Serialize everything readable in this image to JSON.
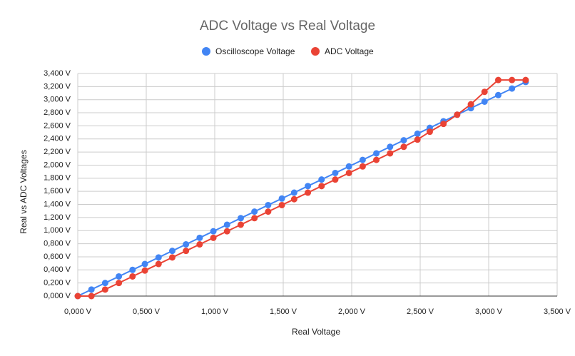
{
  "chart_data": {
    "type": "line",
    "title": "ADC Voltage vs Real Voltage",
    "x_label": "Real Voltage",
    "y_label": "Real vs ADC Voltages",
    "x": [
      0,
      0.1,
      0.2,
      0.3,
      0.4,
      0.49,
      0.59,
      0.69,
      0.79,
      0.89,
      0.99,
      1.09,
      1.19,
      1.29,
      1.39,
      1.49,
      1.58,
      1.68,
      1.78,
      1.88,
      1.98,
      2.08,
      2.18,
      2.28,
      2.38,
      2.48,
      2.57,
      2.67,
      2.77,
      2.87,
      2.97,
      3.07,
      3.17,
      3.27
    ],
    "series": [
      {
        "name": "Oscilloscope Voltage",
        "color": "#4285f4",
        "values": [
          0,
          0.1,
          0.2,
          0.3,
          0.4,
          0.49,
          0.59,
          0.69,
          0.79,
          0.89,
          0.99,
          1.09,
          1.19,
          1.29,
          1.39,
          1.49,
          1.58,
          1.68,
          1.78,
          1.88,
          1.98,
          2.08,
          2.18,
          2.28,
          2.38,
          2.48,
          2.57,
          2.67,
          2.77,
          2.87,
          2.97,
          3.07,
          3.17,
          3.27
        ]
      },
      {
        "name": "ADC Voltage",
        "color": "#ea4335",
        "values": [
          0,
          0,
          0.1,
          0.2,
          0.3,
          0.39,
          0.49,
          0.59,
          0.69,
          0.79,
          0.89,
          0.99,
          1.09,
          1.19,
          1.29,
          1.39,
          1.48,
          1.58,
          1.68,
          1.78,
          1.88,
          1.98,
          2.08,
          2.18,
          2.28,
          2.39,
          2.51,
          2.63,
          2.77,
          2.93,
          3.12,
          3.3,
          3.3,
          3.3
        ]
      }
    ],
    "xlim": [
      0,
      3.5
    ],
    "xticks": [
      {
        "value": 0,
        "label": "0,000 V"
      },
      {
        "value": 0.5,
        "label": "0,500 V"
      },
      {
        "value": 1,
        "label": "1,000 V"
      },
      {
        "value": 1.5,
        "label": "1,500 V"
      },
      {
        "value": 2,
        "label": "2,000 V"
      },
      {
        "value": 2.5,
        "label": "2,500 V"
      },
      {
        "value": 3,
        "label": "3,000 V"
      },
      {
        "value": 3.5,
        "label": "3,500 V"
      }
    ],
    "ylim": [
      0,
      3.4
    ],
    "yticks": [
      {
        "value": 0,
        "label": "0,000 V"
      },
      {
        "value": 0.2,
        "label": "0,200 V"
      },
      {
        "value": 0.4,
        "label": "0,400 V"
      },
      {
        "value": 0.6,
        "label": "0,600 V"
      },
      {
        "value": 0.8,
        "label": "0,800 V"
      },
      {
        "value": 1,
        "label": "1,000 V"
      },
      {
        "value": 1.2,
        "label": "1,200 V"
      },
      {
        "value": 1.4,
        "label": "1,400 V"
      },
      {
        "value": 1.6,
        "label": "1,600 V"
      },
      {
        "value": 1.8,
        "label": "1,800 V"
      },
      {
        "value": 2,
        "label": "2,000 V"
      },
      {
        "value": 2.2,
        "label": "2,200 V"
      },
      {
        "value": 2.4,
        "label": "2,400 V"
      },
      {
        "value": 2.6,
        "label": "2,600 V"
      },
      {
        "value": 2.8,
        "label": "2,800 V"
      },
      {
        "value": 3,
        "label": "3,000 V"
      },
      {
        "value": 3.2,
        "label": "3,200 V"
      },
      {
        "value": 3.4,
        "label": "3,400 V"
      }
    ],
    "grid": true,
    "legend": "top"
  }
}
